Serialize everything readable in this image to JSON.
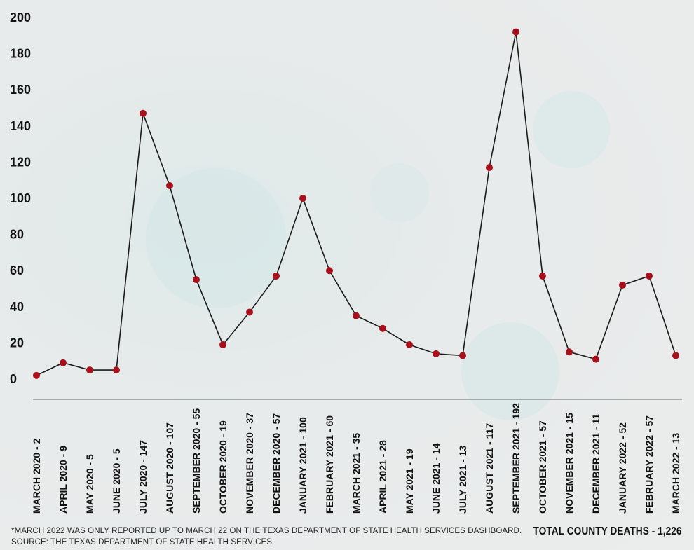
{
  "chart_data": {
    "type": "line",
    "categories": [
      "MARCH 2020 - 2",
      "APRIL 2020 - 9",
      "MAY 2020 - 5",
      "JUNE 2020 - 5",
      "JULY 2020 - 147",
      "AUGUST 2020 - 107",
      "SEPTEMBER  2020 - 55",
      "OCTOBER 2020 - 19",
      "NOVEMBER 2020 - 37",
      "DECEMBER 2020 - 57",
      "JANUARY 2021 - 100",
      "FEBRUARY 2021 - 60",
      "MARCH 2021 - 35",
      "APRIL 2021 - 28",
      "MAY 2021 - 19",
      "JUNE 2021 - 14",
      "JULY 2021 - 13",
      "AUGUST 2021 - 117",
      "SEPTEMBER  2021 - 192",
      "OCTOBER 2021 - 57",
      "NOVEMBER 2021 - 15",
      "DECEMBER 2021 - 11",
      "JANUARY 2022 - 52",
      "FEBRUARY 2022 - 57",
      "MARCH 2022 - 13"
    ],
    "values": [
      2,
      9,
      5,
      5,
      147,
      107,
      55,
      19,
      37,
      57,
      100,
      60,
      35,
      28,
      19,
      14,
      13,
      117,
      192,
      57,
      15,
      11,
      52,
      57,
      13
    ],
    "ylim": [
      0,
      200
    ],
    "yticks": [
      0,
      20,
      40,
      60,
      80,
      100,
      120,
      140,
      160,
      180,
      200
    ],
    "grid": false,
    "line_color": "#1a1a1a",
    "marker_color": "#a8101c",
    "axis_color": "#8f9696"
  },
  "footnote": {
    "line1": "*MARCH 2022 WAS ONLY REPORTED UP TO MARCH 22 ON THE TEXAS DEPARTMENT OF STATE HEALTH SERVICES DASHBOARD.",
    "line2": "SOURCE: THE TEXAS DEPARTMENT OF STATE HEALTH SERVICES"
  },
  "total": "TOTAL COUNTY DEATHS - 1,226"
}
